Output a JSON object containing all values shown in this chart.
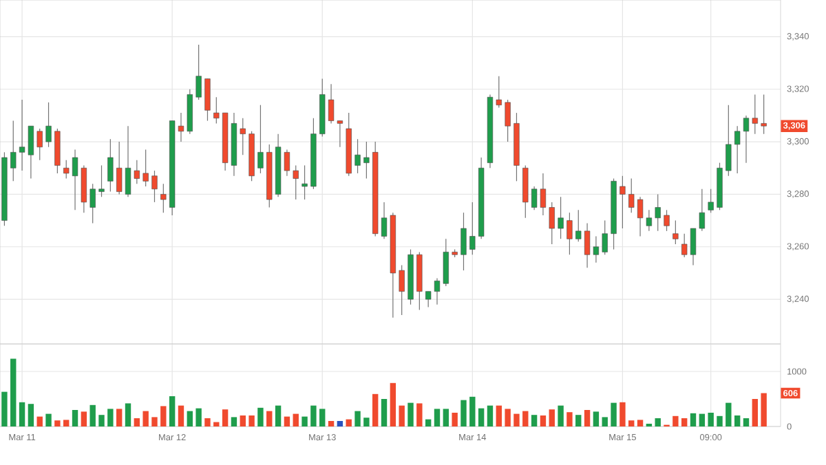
{
  "chart_data": [
    {
      "type": "candlestick",
      "categories": [
        null,
        null,
        null,
        null,
        null,
        null,
        null,
        null,
        null,
        null,
        null,
        null,
        null,
        null,
        null,
        null,
        null,
        null,
        null,
        null,
        null,
        null,
        null,
        null,
        null,
        null,
        null,
        null,
        null,
        null,
        null,
        null,
        null,
        null,
        null,
        null,
        null,
        null,
        null,
        null,
        null,
        null,
        null,
        null,
        null,
        null,
        null,
        null,
        null,
        null,
        null,
        null,
        null,
        null,
        null,
        null,
        null,
        null,
        null,
        null,
        null,
        null,
        null,
        null,
        null,
        null,
        null,
        null,
        null,
        null,
        null,
        null,
        null,
        null,
        null,
        null,
        null,
        null,
        null,
        null,
        null,
        null,
        null,
        null,
        null,
        null,
        null
      ],
      "ohlc": [
        [
          3270,
          3296,
          3268,
          3294
        ],
        [
          3290,
          3308,
          3285,
          3296
        ],
        [
          3296,
          3316,
          3289,
          3298
        ],
        [
          3295,
          3306,
          3286,
          3306
        ],
        [
          3304,
          3305,
          3293,
          3298
        ],
        [
          3300,
          3315,
          3298,
          3306
        ],
        [
          3304,
          3305,
          3288,
          3291
        ],
        [
          3290,
          3293,
          3286,
          3288
        ],
        [
          3287,
          3297,
          3274,
          3294
        ],
        [
          3290,
          3291,
          3273,
          3277
        ],
        [
          3275,
          3284,
          3269,
          3282
        ],
        [
          3281,
          3291,
          3279,
          3282
        ],
        [
          3285,
          3301,
          3281,
          3294
        ],
        [
          3290,
          3300,
          3280,
          3281
        ],
        [
          3280,
          3306,
          3279,
          3290
        ],
        [
          3289,
          3293,
          3284,
          3286
        ],
        [
          3288,
          3297,
          3283,
          3285
        ],
        [
          3287,
          3289,
          3277,
          3282
        ],
        [
          3280,
          3284,
          3273,
          3278
        ],
        [
          3275,
          3308,
          3272,
          3308
        ],
        [
          3306,
          3311,
          3300,
          3304
        ],
        [
          3304,
          3320,
          3303,
          3318
        ],
        [
          3317,
          3337,
          3316,
          3325
        ],
        [
          3324,
          3324,
          3308,
          3312
        ],
        [
          3311,
          3317,
          3307,
          3309
        ],
        [
          3311,
          3311,
          3289,
          3292
        ],
        [
          3291,
          3311,
          3287,
          3307
        ],
        [
          3305,
          3309,
          3295,
          3303
        ],
        [
          3303,
          3304,
          3285,
          3287
        ],
        [
          3290,
          3314,
          3288,
          3296
        ],
        [
          3296,
          3299,
          3275,
          3278
        ],
        [
          3280,
          3303,
          3279,
          3298
        ],
        [
          3296,
          3297,
          3287,
          3289
        ],
        [
          3289,
          3291,
          3278,
          3286
        ],
        [
          3283,
          3291,
          3278,
          3284
        ],
        [
          3283,
          3309,
          3282,
          3303
        ],
        [
          3303,
          3324,
          3302,
          3318
        ],
        [
          3316,
          3322,
          3307,
          3308
        ],
        [
          3308,
          3308,
          3298,
          3307
        ],
        [
          3305,
          3311,
          3287,
          3288
        ],
        [
          3291,
          3301,
          3288,
          3295
        ],
        [
          3292,
          3300,
          3286,
          3294
        ],
        [
          3296,
          3300,
          3264,
          3265
        ],
        [
          3264,
          3277,
          3263,
          3271
        ],
        [
          3272,
          3273,
          3233,
          3250
        ],
        [
          3251,
          3253,
          3234,
          3243
        ],
        [
          3240,
          3259,
          3238,
          3257
        ],
        [
          3257,
          3258,
          3236,
          3243
        ],
        [
          3240,
          3243,
          3237,
          3243
        ],
        [
          3243,
          3248,
          3238,
          3247
        ],
        [
          3246,
          3263,
          3245,
          3258
        ],
        [
          3258,
          3259,
          3256,
          3257
        ],
        [
          3257,
          3273,
          3251,
          3267
        ],
        [
          3259,
          3277,
          3257,
          3264
        ],
        [
          3264,
          3294,
          3263,
          3290
        ],
        [
          3292,
          3318,
          3290,
          3317
        ],
        [
          3316,
          3325,
          3313,
          3314
        ],
        [
          3315,
          3316,
          3300,
          3306
        ],
        [
          3307,
          3311,
          3285,
          3291
        ],
        [
          3290,
          3291,
          3271,
          3277
        ],
        [
          3275,
          3283,
          3274,
          3282
        ],
        [
          3282,
          3288,
          3272,
          3275
        ],
        [
          3275,
          3277,
          3261,
          3267
        ],
        [
          3267,
          3279,
          3263,
          3271
        ],
        [
          3270,
          3273,
          3257,
          3263
        ],
        [
          3263,
          3274,
          3262,
          3266
        ],
        [
          3266,
          3269,
          3252,
          3257
        ],
        [
          3257,
          3264,
          3254,
          3260
        ],
        [
          3258,
          3270,
          3257,
          3265
        ],
        [
          3265,
          3286,
          3259,
          3285
        ],
        [
          3283,
          3287,
          3267,
          3280
        ],
        [
          3280,
          3286,
          3273,
          3275
        ],
        [
          3278,
          3279,
          3264,
          3271
        ],
        [
          3268,
          3274,
          3266,
          3271
        ],
        [
          3271,
          3280,
          3266,
          3275
        ],
        [
          3272,
          3274,
          3266,
          3268
        ],
        [
          3265,
          3270,
          3261,
          3263
        ],
        [
          3261,
          3265,
          3256,
          3257
        ],
        [
          3257,
          3267,
          3253,
          3267
        ],
        [
          3267,
          3282,
          3266,
          3273
        ],
        [
          3274,
          3282,
          3273,
          3277
        ],
        [
          3275,
          3292,
          3274,
          3290
        ],
        [
          3289,
          3314,
          3287,
          3299
        ],
        [
          3299,
          3306,
          3288,
          3304
        ],
        [
          3304,
          3310,
          3292,
          3309
        ],
        [
          3309,
          3318,
          3303,
          3307
        ],
        [
          3307,
          3318,
          3303,
          3306
        ]
      ],
      "colors": [
        "#1f9d4c",
        "#1f9d4c",
        "#1f9d4c",
        "#1f9d4c",
        "#f04a2e",
        "#1f9d4c",
        "#f04a2e",
        "#f04a2e",
        "#1f9d4c",
        "#f04a2e",
        "#1f9d4c",
        "#1f9d4c",
        "#1f9d4c",
        "#f04a2e",
        "#1f9d4c",
        "#f04a2e",
        "#f04a2e",
        "#f04a2e",
        "#f04a2e",
        "#1f9d4c",
        "#f04a2e",
        "#1f9d4c",
        "#1f9d4c",
        "#f04a2e",
        "#f04a2e",
        "#f04a2e",
        "#1f9d4c",
        "#f04a2e",
        "#f04a2e",
        "#1f9d4c",
        "#f04a2e",
        "#1f9d4c",
        "#f04a2e",
        "#f04a2e",
        "#1f9d4c",
        "#1f9d4c",
        "#1f9d4c",
        "#f04a2e",
        "#f04a2e",
        "#f04a2e",
        "#1f9d4c",
        "#1f9d4c",
        "#f04a2e",
        "#1f9d4c",
        "#f04a2e",
        "#f04a2e",
        "#1f9d4c",
        "#f04a2e",
        "#1f9d4c",
        "#1f9d4c",
        "#1f9d4c",
        "#f04a2e",
        "#1f9d4c",
        "#1f9d4c",
        "#1f9d4c",
        "#1f9d4c",
        "#f04a2e",
        "#f04a2e",
        "#f04a2e",
        "#f04a2e",
        "#1f9d4c",
        "#f04a2e",
        "#f04a2e",
        "#1f9d4c",
        "#f04a2e",
        "#1f9d4c",
        "#f04a2e",
        "#1f9d4c",
        "#1f9d4c",
        "#1f9d4c",
        "#f04a2e",
        "#f04a2e",
        "#f04a2e",
        "#1f9d4c",
        "#1f9d4c",
        "#f04a2e",
        "#f04a2e",
        "#f04a2e",
        "#1f9d4c",
        "#1f9d4c",
        "#1f9d4c",
        "#1f9d4c",
        "#1f9d4c",
        "#1f9d4c",
        "#1f9d4c",
        "#f04a2e",
        "#f04a2e"
      ],
      "ylim": [
        3223,
        3354
      ],
      "yticks": [
        {
          "value": 3240,
          "label": "3,240"
        },
        {
          "value": 3260,
          "label": "3,260"
        },
        {
          "value": 3280,
          "label": "3,280"
        },
        {
          "value": 3300,
          "label": "3,300"
        },
        {
          "value": 3320,
          "label": "3,320"
        },
        {
          "value": 3340,
          "label": "3,340"
        }
      ],
      "grid": true,
      "annotations": [
        {
          "text": "3,306",
          "y": 3306
        }
      ]
    },
    {
      "type": "bar",
      "categories": [
        null,
        null,
        "Mar 11",
        null,
        null,
        null,
        null,
        null,
        null,
        null,
        null,
        null,
        null,
        null,
        null,
        null,
        null,
        null,
        null,
        "Mar 12",
        null,
        null,
        null,
        null,
        null,
        null,
        null,
        null,
        null,
        null,
        null,
        null,
        null,
        null,
        null,
        null,
        "Mar 13",
        null,
        null,
        null,
        null,
        null,
        null,
        null,
        null,
        null,
        null,
        null,
        null,
        null,
        null,
        null,
        null,
        "Mar 14",
        null,
        null,
        null,
        null,
        null,
        null,
        null,
        null,
        null,
        null,
        null,
        null,
        null,
        null,
        null,
        null,
        "Mar 15",
        null,
        null,
        null,
        null,
        null,
        null,
        null,
        null,
        null,
        "09:00",
        null,
        null,
        null,
        null,
        null,
        null
      ],
      "values": [
        630,
        1230,
        440,
        410,
        180,
        230,
        110,
        120,
        300,
        270,
        390,
        210,
        320,
        320,
        420,
        150,
        280,
        170,
        370,
        550,
        380,
        280,
        330,
        150,
        80,
        310,
        170,
        200,
        200,
        340,
        280,
        380,
        180,
        230,
        180,
        380,
        320,
        100,
        100,
        130,
        280,
        160,
        590,
        500,
        790,
        380,
        430,
        420,
        130,
        320,
        320,
        250,
        480,
        540,
        330,
        380,
        380,
        320,
        230,
        280,
        210,
        200,
        310,
        380,
        260,
        210,
        300,
        270,
        170,
        430,
        440,
        110,
        120,
        50,
        150,
        30,
        190,
        150,
        240,
        230,
        250,
        190,
        430,
        200,
        150,
        500,
        606
      ],
      "colors": [
        "#1f9d4c",
        "#1f9d4c",
        "#1f9d4c",
        "#1f9d4c",
        "#f04a2e",
        "#1f9d4c",
        "#f04a2e",
        "#f04a2e",
        "#1f9d4c",
        "#f04a2e",
        "#1f9d4c",
        "#1f9d4c",
        "#1f9d4c",
        "#f04a2e",
        "#1f9d4c",
        "#f04a2e",
        "#f04a2e",
        "#f04a2e",
        "#f04a2e",
        "#1f9d4c",
        "#f04a2e",
        "#1f9d4c",
        "#1f9d4c",
        "#f04a2e",
        "#f04a2e",
        "#f04a2e",
        "#1f9d4c",
        "#f04a2e",
        "#f04a2e",
        "#1f9d4c",
        "#f04a2e",
        "#1f9d4c",
        "#f04a2e",
        "#f04a2e",
        "#1f9d4c",
        "#1f9d4c",
        "#1f9d4c",
        "#f04a2e",
        "#2a52be",
        "#f04a2e",
        "#1f9d4c",
        "#1f9d4c",
        "#f04a2e",
        "#1f9d4c",
        "#f04a2e",
        "#f04a2e",
        "#1f9d4c",
        "#f04a2e",
        "#1f9d4c",
        "#1f9d4c",
        "#1f9d4c",
        "#f04a2e",
        "#1f9d4c",
        "#1f9d4c",
        "#1f9d4c",
        "#1f9d4c",
        "#f04a2e",
        "#f04a2e",
        "#f04a2e",
        "#f04a2e",
        "#1f9d4c",
        "#f04a2e",
        "#f04a2e",
        "#1f9d4c",
        "#f04a2e",
        "#1f9d4c",
        "#f04a2e",
        "#1f9d4c",
        "#1f9d4c",
        "#1f9d4c",
        "#f04a2e",
        "#f04a2e",
        "#f04a2e",
        "#1f9d4c",
        "#1f9d4c",
        "#f04a2e",
        "#f04a2e",
        "#f04a2e",
        "#1f9d4c",
        "#1f9d4c",
        "#1f9d4c",
        "#1f9d4c",
        "#1f9d4c",
        "#1f9d4c",
        "#1f9d4c",
        "#f04a2e",
        "#f04a2e"
      ],
      "ylim": [
        0,
        1500
      ],
      "yticks": [
        0,
        1000
      ],
      "grid": true,
      "annotations": [
        {
          "text": "606",
          "y": 606
        }
      ]
    }
  ]
}
